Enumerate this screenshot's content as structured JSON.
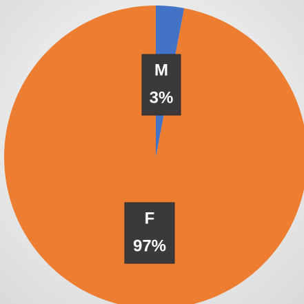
{
  "chart_data": {
    "type": "pie",
    "categories": [
      "M",
      "F"
    ],
    "values": [
      3,
      97
    ],
    "value_labels": [
      "3%",
      "97%"
    ],
    "colors": [
      "#4472c4",
      "#ed7d31"
    ]
  }
}
